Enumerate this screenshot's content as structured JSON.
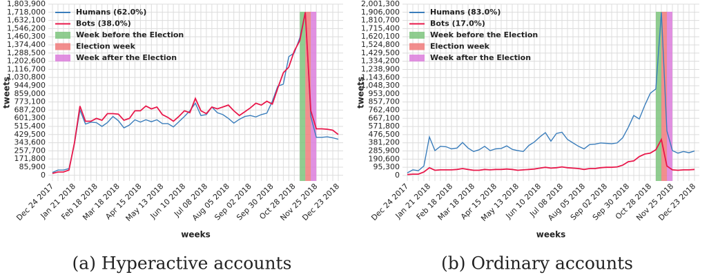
{
  "chart_data": [
    {
      "type": "line",
      "caption": "(a) Hyperactive accounts",
      "xlabel": "weeks",
      "ylabel": "tweets",
      "categories": [
        "Dec 24 2017",
        null,
        null,
        null,
        "Jan 21 2018",
        null,
        null,
        null,
        "Feb 18 2018",
        null,
        null,
        null,
        "Mar 18 2018",
        null,
        null,
        null,
        "Apr 15 2018",
        null,
        null,
        null,
        "May 13 2018",
        null,
        null,
        null,
        "Jun 10 2018",
        null,
        null,
        null,
        "Jul 08 2018",
        null,
        null,
        null,
        "Aug 05 2018",
        null,
        null,
        null,
        "Sep 02 2018",
        null,
        null,
        null,
        "Sep 30 2018",
        null,
        null,
        null,
        "Oct 28 2018",
        null,
        null,
        null,
        "Nov 25 2018",
        null,
        null,
        null,
        "Dec 23 2018"
      ],
      "series": [
        {
          "name": "Humans (62.0%)",
          "color": "#3a7dbb",
          "values": [
            30000,
            55000,
            55000,
            70000,
            330000,
            690000,
            540000,
            560000,
            555000,
            515000,
            555000,
            620000,
            575000,
            500000,
            530000,
            585000,
            560000,
            585000,
            565000,
            585000,
            545000,
            545000,
            510000,
            565000,
            620000,
            680000,
            760000,
            630000,
            640000,
            720000,
            660000,
            640000,
            600000,
            550000,
            590000,
            620000,
            630000,
            615000,
            640000,
            655000,
            780000,
            940000,
            960000,
            1250000,
            1290000,
            1450000,
            1718000,
            620000,
            400000,
            400000,
            405000,
            395000,
            380000
          ]
        },
        {
          "name": "Bots (38.0%)",
          "color": "#e8174a",
          "values": [
            20000,
            35000,
            35000,
            55000,
            340000,
            730000,
            570000,
            570000,
            600000,
            580000,
            650000,
            650000,
            645000,
            580000,
            600000,
            680000,
            680000,
            730000,
            700000,
            720000,
            640000,
            610000,
            570000,
            620000,
            680000,
            660000,
            810000,
            680000,
            650000,
            720000,
            700000,
            720000,
            740000,
            680000,
            630000,
            670000,
            710000,
            760000,
            740000,
            780000,
            750000,
            920000,
            1080000,
            1140000,
            1310000,
            1420000,
            1718000,
            680000,
            490000,
            490000,
            485000,
            475000,
            430000
          ]
        }
      ],
      "bands": [
        {
          "name": "Week before the Election",
          "color": "#7cc47c",
          "start": 45,
          "end": 46
        },
        {
          "name": "Election week",
          "color": "#f07a7a",
          "start": 46,
          "end": 47
        },
        {
          "name": "Week after the Election",
          "color": "#dc7ddc",
          "start": 47,
          "end": 48
        }
      ],
      "ylim": [
        -60000,
        1803900
      ],
      "yticks": [
        0,
        {
          "value": 85900,
          "label": "85,900"
        },
        {
          "value": 171800,
          "label": "171,800"
        },
        {
          "value": 257700,
          "label": "257,700"
        },
        {
          "value": 343600,
          "label": "343,600"
        },
        {
          "value": 429500,
          "label": "429,500"
        },
        {
          "value": 515400,
          "label": "515,400"
        },
        {
          "value": 601300,
          "label": "601,300"
        },
        {
          "value": 687200,
          "label": "687,200"
        },
        {
          "value": 773100,
          "label": "773,100"
        },
        {
          "value": 859000,
          "label": "859,000"
        },
        {
          "value": 944900,
          "label": "944,900"
        },
        {
          "value": 1030800,
          "label": "1,030,800"
        },
        {
          "value": 1116700,
          "label": "1,116,700"
        },
        {
          "value": 1202600,
          "label": "1,202,600"
        },
        {
          "value": 1288500,
          "label": "1,288,500"
        },
        {
          "value": 1374400,
          "label": "1,374,400"
        },
        {
          "value": 1460300,
          "label": "1,460,300"
        },
        {
          "value": 1546200,
          "label": "1,546,200"
        },
        {
          "value": 1632100,
          "label": "1,632,100"
        },
        {
          "value": 1718000,
          "label": "1,718,000"
        },
        {
          "value": 1803900,
          "label": "1,803,900"
        }
      ],
      "grid": true,
      "legend": "upper left"
    },
    {
      "type": "line",
      "caption": "(b) Ordinary accounts",
      "xlabel": "weeks",
      "ylabel": "tweets",
      "categories": [
        "Dec 24 2017",
        null,
        null,
        null,
        "Jan 21 2018",
        null,
        null,
        null,
        "Feb 18 2018",
        null,
        null,
        null,
        "Mar 18 2018",
        null,
        null,
        null,
        "Apr 15 2018",
        null,
        null,
        null,
        "May 13 2018",
        null,
        null,
        null,
        "Jun 10 2018",
        null,
        null,
        null,
        "Jul 08 2018",
        null,
        null,
        null,
        "Aug 05 2018",
        null,
        null,
        null,
        "Sep 02 2018",
        null,
        null,
        null,
        "Sep 30 2018",
        null,
        null,
        null,
        "Oct 28 2018",
        null,
        null,
        null,
        "Nov 25 2018",
        null,
        null,
        null,
        "Dec 23 2018"
      ],
      "series": [
        {
          "name": "Humans (83.0%)",
          "color": "#3a7dbb",
          "values": [
            30000,
            65000,
            55000,
            110000,
            450000,
            290000,
            340000,
            335000,
            310000,
            320000,
            385000,
            320000,
            280000,
            300000,
            340000,
            290000,
            310000,
            315000,
            345000,
            305000,
            290000,
            280000,
            350000,
            390000,
            450000,
            500000,
            400000,
            490000,
            505000,
            420000,
            380000,
            340000,
            310000,
            360000,
            365000,
            380000,
            375000,
            370000,
            380000,
            440000,
            560000,
            700000,
            660000,
            820000,
            960000,
            1010000,
            1906000,
            520000,
            290000,
            260000,
            280000,
            265000,
            285000
          ]
        },
        {
          "name": "Bots (17.0%)",
          "color": "#e8174a",
          "values": [
            10000,
            15000,
            15000,
            40000,
            90000,
            60000,
            65000,
            65000,
            65000,
            70000,
            80000,
            70000,
            60000,
            60000,
            70000,
            65000,
            70000,
            70000,
            75000,
            70000,
            60000,
            65000,
            70000,
            75000,
            85000,
            95000,
            85000,
            90000,
            100000,
            90000,
            85000,
            80000,
            70000,
            80000,
            80000,
            90000,
            95000,
            95000,
            100000,
            120000,
            160000,
            170000,
            220000,
            250000,
            260000,
            300000,
            420000,
            110000,
            65000,
            60000,
            65000,
            65000,
            70000
          ]
        }
      ],
      "bands": [
        {
          "name": "Week before the Election",
          "color": "#7cc47c",
          "start": 45,
          "end": 46
        },
        {
          "name": "Election week",
          "color": "#f07a7a",
          "start": 46,
          "end": 47
        },
        {
          "name": "Week after the Election",
          "color": "#dc7ddc",
          "start": 47,
          "end": 48
        }
      ],
      "ylim": [
        -65000,
        2001300
      ],
      "yticks": [
        0,
        {
          "value": 95300,
          "label": "95,300"
        },
        {
          "value": 190600,
          "label": "190,600"
        },
        {
          "value": 285900,
          "label": "285,900"
        },
        {
          "value": 381200,
          "label": "381,200"
        },
        {
          "value": 476500,
          "label": "476,500"
        },
        {
          "value": 571800,
          "label": "571,800"
        },
        {
          "value": 667100,
          "label": "667,100"
        },
        {
          "value": 762400,
          "label": "762,400"
        },
        {
          "value": 857700,
          "label": "857,700"
        },
        {
          "value": 953000,
          "label": "953,000"
        },
        {
          "value": 1048300,
          "label": "1,048,300"
        },
        {
          "value": 1143600,
          "label": "1,143,600"
        },
        {
          "value": 1238900,
          "label": "1,238,900"
        },
        {
          "value": 1334200,
          "label": "1,334,200"
        },
        {
          "value": 1429500,
          "label": "1,429,500"
        },
        {
          "value": 1524800,
          "label": "1,524,800"
        },
        {
          "value": 1620100,
          "label": "1,620,100"
        },
        {
          "value": 1715400,
          "label": "1,715,400"
        },
        {
          "value": 1810700,
          "label": "1,810,700"
        },
        {
          "value": 1906000,
          "label": "1,906,000"
        },
        {
          "value": 2001300,
          "label": "2,001,300"
        }
      ],
      "grid": true,
      "legend": "upper left"
    }
  ]
}
